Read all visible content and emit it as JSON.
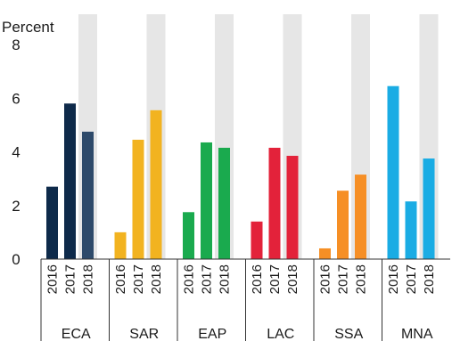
{
  "chart_data": {
    "type": "bar",
    "ylabel": "Percent",
    "ylim": [
      0,
      8
    ],
    "yticks": [
      "0",
      "2",
      "4",
      "6",
      "8"
    ],
    "years": [
      "2016",
      "2017",
      "2018"
    ],
    "shaded_year_index": 2,
    "groups": [
      {
        "region": "ECA",
        "values": [
          2.7,
          5.8,
          4.75
        ],
        "colors": [
          "#0e2a4a",
          "#0e2a4a",
          "#2e4a6a"
        ]
      },
      {
        "region": "SAR",
        "values": [
          1.0,
          4.45,
          5.55
        ],
        "colors": [
          "#f2b320",
          "#f2b320",
          "#f2b320"
        ]
      },
      {
        "region": "EAP",
        "values": [
          1.75,
          4.35,
          4.15
        ],
        "colors": [
          "#1aaa4e",
          "#1aaa4e",
          "#1aaa4e"
        ]
      },
      {
        "region": "LAC",
        "values": [
          1.4,
          4.15,
          3.85
        ],
        "colors": [
          "#e3223a",
          "#e3223a",
          "#e3223a"
        ]
      },
      {
        "region": "SSA",
        "values": [
          0.4,
          2.55,
          3.15
        ],
        "colors": [
          "#f68f25",
          "#f68f25",
          "#f68f25"
        ]
      },
      {
        "region": "MNA",
        "values": [
          6.45,
          2.15,
          3.75
        ],
        "colors": [
          "#1aace4",
          "#1aace4",
          "#1aace4"
        ]
      }
    ],
    "shade_color": "#e6e6e6",
    "grid": false
  }
}
